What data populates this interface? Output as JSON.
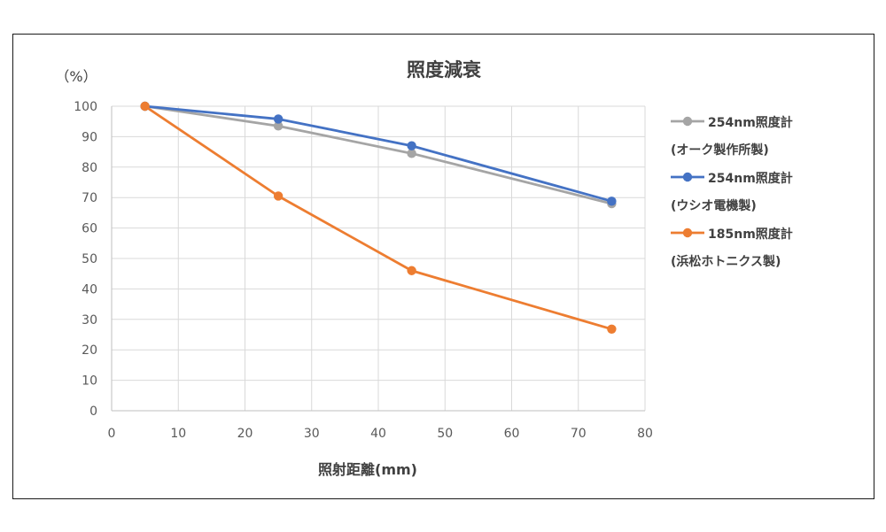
{
  "chart_data": {
    "type": "line",
    "title": "照度減衰",
    "xlabel": "照射距離(mm)",
    "ylabel": "（%）",
    "xlim": [
      0,
      80
    ],
    "ylim": [
      0,
      100
    ],
    "xticks": [
      0,
      10,
      20,
      30,
      40,
      50,
      60,
      70,
      80
    ],
    "yticks": [
      0,
      10,
      20,
      30,
      40,
      50,
      60,
      70,
      80,
      90,
      100
    ],
    "grid": true,
    "legend_position": "right",
    "series": [
      {
        "name": "254nm照度計(オーク製作所製)",
        "legend_lines": [
          "254nm照度計",
          "(オーク製作所製)"
        ],
        "color": "#a5a5a5",
        "x": [
          5,
          25,
          45,
          75
        ],
        "y": [
          100,
          93.5,
          84.5,
          68
        ]
      },
      {
        "name": "254nm照度計(ウシオ電機製)",
        "legend_lines": [
          "254nm照度計",
          "(ウシオ電機製)"
        ],
        "color": "#4472c4",
        "x": [
          5,
          25,
          45,
          75
        ],
        "y": [
          100,
          95.8,
          87,
          68.8
        ]
      },
      {
        "name": "185nm照度計(浜松ホトニクス製)",
        "legend_lines": [
          "185nm照度計",
          "(浜松ホトニクス製)"
        ],
        "color": "#ed7d31",
        "x": [
          5,
          25,
          45,
          75
        ],
        "y": [
          100,
          70.5,
          46,
          26.8
        ]
      }
    ]
  }
}
